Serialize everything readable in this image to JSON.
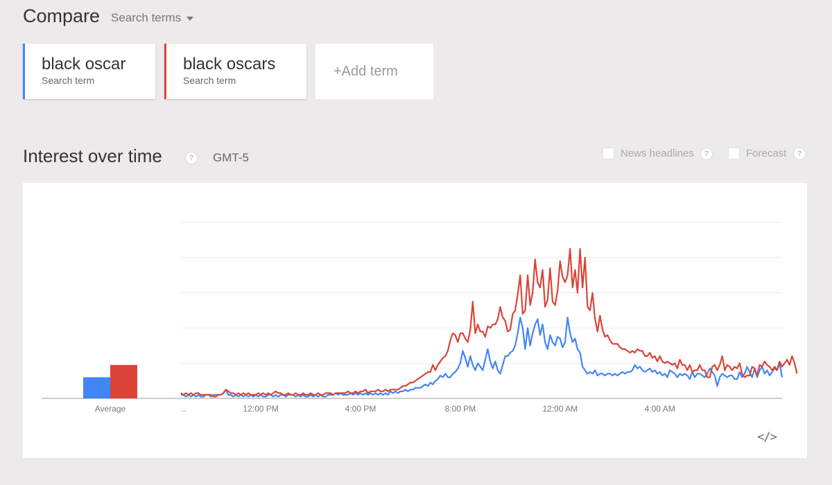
{
  "header": {
    "title": "Compare",
    "search_dropdown_label": "Search terms"
  },
  "terms": [
    {
      "name": "black oscar",
      "sub": "Search term",
      "color": "#4285f4"
    },
    {
      "name": "black oscars",
      "sub": "Search term",
      "color": "#db4437"
    }
  ],
  "add_term_label": "+Add term",
  "section": {
    "title": "Interest over time",
    "timezone": "GMT-5",
    "news_headlines_label": "News headlines",
    "forecast_label": "Forecast"
  },
  "chart_data": {
    "type": "line",
    "average_label": "Average",
    "averages": [
      12,
      19
    ],
    "x_start": "..",
    "x_ticks": [
      {
        "label": "12:00 PM",
        "i": 32
      },
      {
        "label": "4:00 PM",
        "i": 72
      },
      {
        "label": "8:00 PM",
        "i": 112
      },
      {
        "label": "12:00 AM",
        "i": 152
      },
      {
        "label": "4:00 AM",
        "i": 192
      }
    ],
    "ylim": [
      0,
      100
    ],
    "grid": true,
    "series": [
      {
        "name": "black oscar",
        "color": "#4285f4",
        "values": [
          2,
          2,
          1,
          2,
          1,
          2,
          1,
          2,
          1,
          1,
          2,
          2,
          1,
          2,
          2,
          2,
          2,
          3,
          5,
          2,
          2,
          1,
          2,
          1,
          2,
          1,
          2,
          1,
          2,
          1,
          2,
          1,
          2,
          1,
          1,
          2,
          2,
          1,
          2,
          1,
          2,
          2,
          1,
          2,
          2,
          2,
          1,
          2,
          1,
          2,
          1,
          1,
          2,
          1,
          2,
          1,
          2,
          1,
          1,
          2,
          2,
          2,
          3,
          2,
          3,
          2,
          2,
          2,
          3,
          2,
          3,
          2,
          3,
          2,
          3,
          2,
          3,
          2,
          3,
          2,
          3,
          2,
          3,
          2,
          4,
          3,
          4,
          3,
          4,
          4,
          5,
          4,
          5,
          5,
          6,
          6,
          6,
          7,
          8,
          7,
          9,
          8,
          10,
          11,
          13,
          12,
          14,
          12,
          12,
          14,
          15,
          17,
          20,
          27,
          23,
          18,
          24,
          19,
          16,
          20,
          18,
          16,
          22,
          28,
          21,
          17,
          21,
          16,
          14,
          19,
          24,
          24,
          26,
          27,
          30,
          37,
          46,
          40,
          28,
          40,
          30,
          37,
          42,
          45,
          36,
          42,
          32,
          28,
          36,
          32,
          30,
          35,
          34,
          29,
          32,
          46,
          37,
          32,
          34,
          28,
          26,
          18,
          16,
          14,
          15,
          14,
          16,
          13,
          14,
          14,
          13,
          14,
          14,
          13,
          14,
          13,
          14,
          15,
          14,
          15,
          15,
          16,
          19,
          17,
          18,
          16,
          15,
          16,
          17,
          15,
          16,
          14,
          15,
          13,
          14,
          12,
          16,
          15,
          14,
          12,
          14,
          13,
          14,
          13,
          11,
          15,
          12,
          14,
          14,
          13,
          12,
          14,
          17,
          15,
          13,
          7,
          12,
          14,
          13,
          12,
          13,
          13,
          11,
          11,
          15,
          12,
          14,
          18,
          15,
          12,
          17,
          12,
          16,
          18,
          14,
          16,
          13,
          15,
          17,
          16,
          20,
          12
        ]
      },
      {
        "name": "black oscars",
        "color": "#db4437",
        "values": [
          3,
          2,
          3,
          2,
          3,
          2,
          3,
          3,
          2,
          2,
          2,
          2,
          2,
          1,
          1,
          2,
          2,
          3,
          5,
          4,
          3,
          3,
          2,
          3,
          2,
          3,
          2,
          3,
          2,
          2,
          2,
          3,
          2,
          3,
          2,
          3,
          2,
          3,
          4,
          3,
          3,
          2,
          2,
          3,
          2,
          2,
          3,
          2,
          2,
          3,
          2,
          2,
          3,
          2,
          2,
          3,
          2,
          2,
          3,
          3,
          3,
          2,
          3,
          3,
          3,
          3,
          3,
          4,
          3,
          3,
          4,
          3,
          4,
          4,
          5,
          3,
          4,
          4,
          4,
          5,
          4,
          4,
          5,
          4,
          5,
          5,
          5,
          5,
          6,
          7,
          7,
          8,
          9,
          9,
          10,
          11,
          12,
          13,
          14,
          15,
          15,
          19,
          16,
          19,
          21,
          23,
          24,
          27,
          33,
          37,
          36,
          32,
          37,
          37,
          34,
          32,
          39,
          55,
          37,
          42,
          38,
          38,
          35,
          41,
          40,
          42,
          42,
          45,
          52,
          46,
          44,
          38,
          39,
          48,
          50,
          59,
          70,
          48,
          50,
          70,
          53,
          60,
          79,
          66,
          63,
          73,
          52,
          56,
          74,
          55,
          53,
          61,
          78,
          69,
          66,
          70,
          85,
          63,
          73,
          60,
          85,
          63,
          80,
          52,
          50,
          60,
          45,
          38,
          47,
          39,
          35,
          36,
          33,
          31,
          31,
          31,
          29,
          28,
          28,
          27,
          26,
          27,
          26,
          28,
          27,
          27,
          24,
          24,
          26,
          23,
          24,
          21,
          24,
          21,
          20,
          21,
          20,
          19,
          20,
          17,
          22,
          19,
          19,
          16,
          19,
          15,
          16,
          16,
          19,
          16,
          16,
          12,
          12,
          18,
          19,
          16,
          19,
          24,
          16,
          19,
          18,
          16,
          18,
          17,
          20,
          14,
          12,
          13,
          13,
          18,
          17,
          13,
          19,
          18,
          21,
          19,
          18,
          16,
          18,
          16,
          21,
          18,
          20,
          22,
          19,
          24,
          20,
          14
        ]
      }
    ]
  }
}
